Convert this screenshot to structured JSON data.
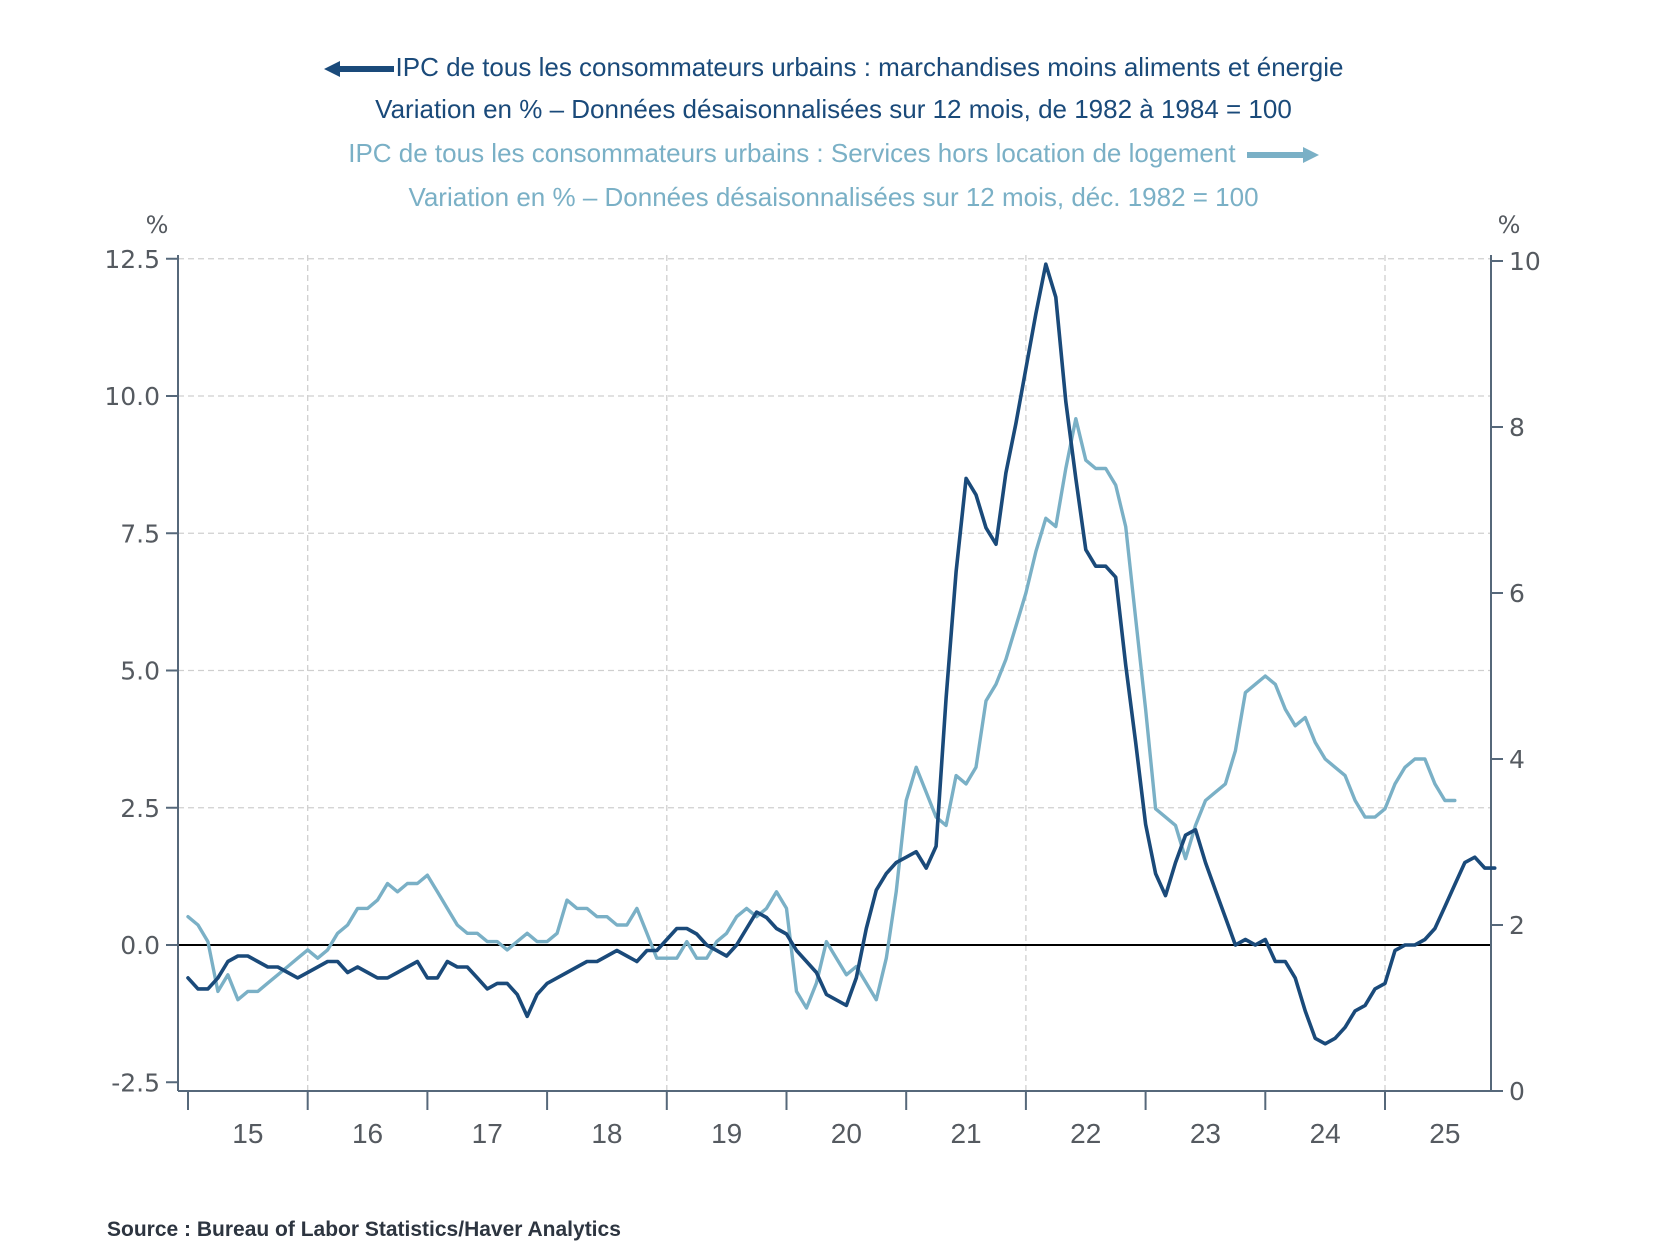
{
  "legend": {
    "series1_title": "IPC de tous les consommateurs urbains : marchandises moins aliments et énergie",
    "series1_subtitle": "Variation en % – Données désaisonnalisées sur 12 mois, de 1982 à 1984 = 100",
    "series1_arrow": "left-arrow-icon",
    "series2_title": "IPC de tous les consommateurs urbains : Services hors location de logement",
    "series2_subtitle": "Variation en % – Données désaisonnalisées sur 12 mois, déc. 1982 = 100",
    "series2_arrow": "right-arrow-icon"
  },
  "source": "Source : Bureau of Labor Statistics/Haver Analytics",
  "colors": {
    "series1": "#1a4a7a",
    "series2": "#7ab0c6",
    "axis": "#56687a",
    "grid": "#cfcfcf",
    "zero": "#000000"
  },
  "chart_data": {
    "type": "line",
    "title": "",
    "x_start": "2015-01",
    "frequency": "monthly",
    "x_tick_labels": [
      "15",
      "16",
      "17",
      "18",
      "19",
      "20",
      "21",
      "22",
      "23",
      "24",
      "25"
    ],
    "left_axis": {
      "label": "%",
      "ylim": [
        -2.5,
        12.5
      ],
      "ticks": [
        "-2.5",
        "0.0",
        "2.5",
        "5.0",
        "7.5",
        "10.0",
        "12.5"
      ],
      "tick_values": [
        -2.5,
        0,
        2.5,
        5,
        7.5,
        10,
        12.5
      ]
    },
    "right_axis": {
      "label": "%",
      "ylim": [
        0,
        10
      ],
      "ticks": [
        "0",
        "2",
        "4",
        "6",
        "8",
        "10"
      ],
      "tick_values": [
        0,
        2,
        4,
        6,
        8,
        10
      ]
    },
    "grid": true,
    "zero_line": 0,
    "series": [
      {
        "name": "IPC de tous les consommateurs urbains : marchandises moins aliments et énergie",
        "axis": "left",
        "values": [
          -0.6,
          -0.8,
          -0.8,
          -0.6,
          -0.3,
          -0.2,
          -0.2,
          -0.3,
          -0.4,
          -0.4,
          -0.5,
          -0.6,
          -0.5,
          -0.4,
          -0.3,
          -0.3,
          -0.5,
          -0.4,
          -0.5,
          -0.6,
          -0.6,
          -0.5,
          -0.4,
          -0.3,
          -0.6,
          -0.6,
          -0.3,
          -0.4,
          -0.4,
          -0.6,
          -0.8,
          -0.7,
          -0.7,
          -0.9,
          -1.3,
          -0.9,
          -0.7,
          -0.6,
          -0.5,
          -0.4,
          -0.3,
          -0.3,
          -0.2,
          -0.1,
          -0.2,
          -0.3,
          -0.1,
          -0.1,
          0.1,
          0.3,
          0.3,
          0.2,
          0.0,
          -0.1,
          -0.2,
          0.0,
          0.3,
          0.6,
          0.5,
          0.3,
          0.2,
          -0.1,
          -0.3,
          -0.5,
          -0.9,
          -1.0,
          -1.1,
          -0.6,
          0.3,
          1.0,
          1.3,
          1.5,
          1.6,
          1.7,
          1.4,
          1.8,
          4.5,
          6.8,
          8.5,
          8.2,
          7.6,
          7.3,
          8.6,
          9.5,
          10.5,
          11.5,
          12.4,
          11.8,
          9.9,
          8.5,
          7.2,
          6.9,
          6.9,
          6.7,
          5.1,
          3.7,
          2.2,
          1.3,
          0.9,
          1.5,
          2.0,
          2.1,
          1.5,
          1.0,
          0.5,
          0.0,
          0.1,
          0.0,
          0.1,
          -0.3,
          -0.3,
          -0.6,
          -1.2,
          -1.7,
          -1.8,
          -1.7,
          -1.5,
          -1.2,
          -1.1,
          -0.8,
          -0.7,
          -0.1,
          0.0,
          0.0,
          0.1,
          0.3,
          0.7,
          1.1,
          1.5,
          1.6,
          1.4,
          1.4
        ]
      },
      {
        "name": "IPC de tous les consommateurs urbains : Services hors location de logement",
        "axis": "right",
        "values": [
          2.1,
          2.0,
          1.8,
          1.2,
          1.4,
          1.1,
          1.2,
          1.2,
          1.3,
          1.4,
          1.5,
          1.6,
          1.7,
          1.6,
          1.7,
          1.9,
          2.0,
          2.2,
          2.2,
          2.3,
          2.5,
          2.4,
          2.5,
          2.5,
          2.6,
          2.4,
          2.2,
          2.0,
          1.9,
          1.9,
          1.8,
          1.8,
          1.7,
          1.8,
          1.9,
          1.8,
          1.8,
          1.9,
          2.3,
          2.2,
          2.2,
          2.1,
          2.1,
          2.0,
          2.0,
          2.2,
          1.9,
          1.6,
          1.6,
          1.6,
          1.8,
          1.6,
          1.6,
          1.8,
          1.9,
          2.1,
          2.2,
          2.1,
          2.2,
          2.4,
          2.2,
          1.2,
          1.0,
          1.3,
          1.8,
          1.6,
          1.4,
          1.5,
          1.3,
          1.1,
          1.6,
          2.4,
          3.5,
          3.9,
          3.6,
          3.3,
          3.2,
          3.8,
          3.7,
          3.9,
          4.7,
          4.9,
          5.2,
          5.6,
          6.0,
          6.5,
          6.9,
          6.8,
          7.5,
          8.1,
          7.6,
          7.5,
          7.5,
          7.3,
          6.8,
          5.7,
          4.6,
          3.4,
          3.3,
          3.2,
          2.8,
          3.2,
          3.5,
          3.6,
          3.7,
          4.1,
          4.8,
          4.9,
          5.0,
          4.9,
          4.6,
          4.4,
          4.5,
          4.2,
          4.0,
          3.9,
          3.8,
          3.5,
          3.3,
          3.3,
          3.4,
          3.7,
          3.9,
          4.0,
          4.0,
          3.7,
          3.5,
          3.5
        ]
      }
    ]
  }
}
